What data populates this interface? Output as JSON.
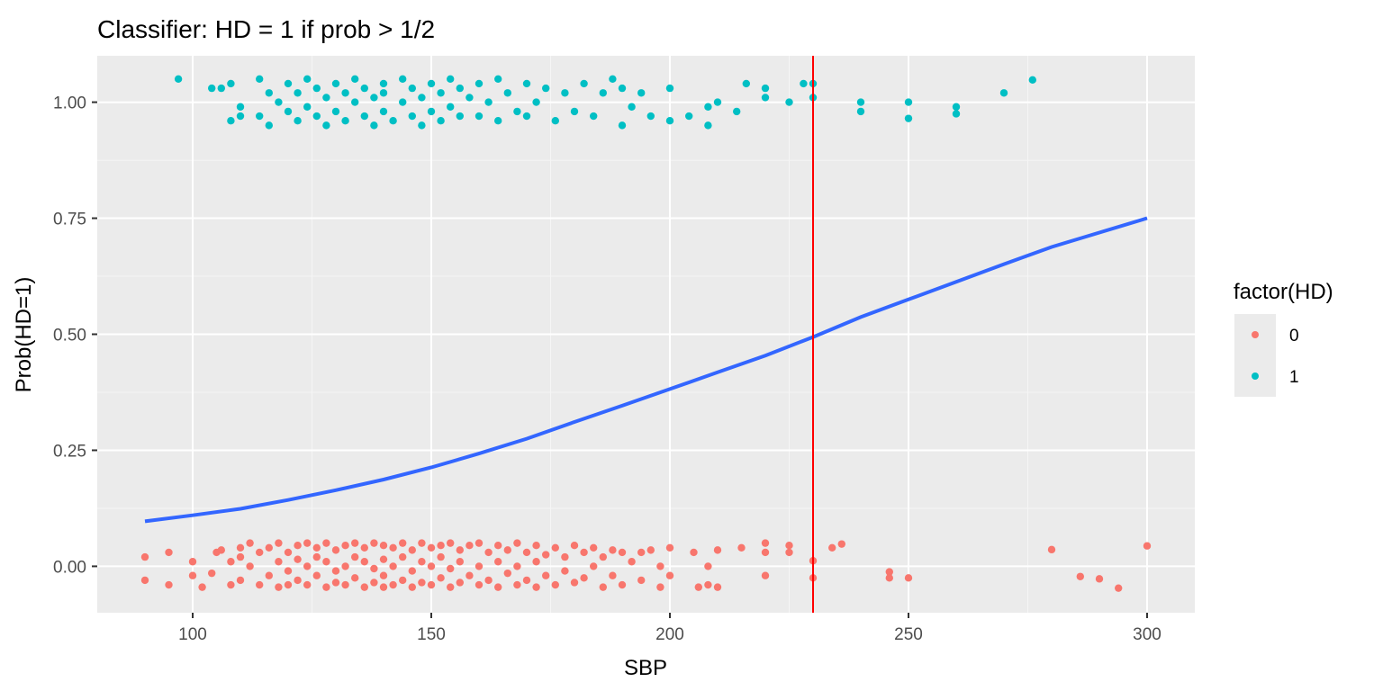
{
  "chart_data": {
    "type": "scatter",
    "title": "Classifier: HD = 1 if prob > 1/2",
    "xlabel": "SBP",
    "ylabel": "Prob(HD=1)",
    "xlim": [
      80,
      310
    ],
    "ylim": [
      -0.1,
      1.1
    ],
    "x_ticks": [
      100,
      150,
      200,
      250,
      300
    ],
    "x_tick_labels": [
      "100",
      "150",
      "200",
      "250",
      "300"
    ],
    "y_ticks": [
      0,
      0.25,
      0.5,
      0.75,
      1.0
    ],
    "y_tick_labels": [
      "0.00",
      "0.25",
      "0.50",
      "0.75",
      "1.00"
    ],
    "grid": true,
    "background": "#ebebeb",
    "legend": {
      "title": "factor(HD)",
      "placement": "right",
      "entries": [
        {
          "label": "0",
          "color": "#f8766d"
        },
        {
          "label": "1",
          "color": "#00bfc4"
        }
      ]
    },
    "threshold_line": {
      "x": 230,
      "color": "#ff0000"
    },
    "fitted_curve": {
      "color": "#3366ff",
      "x": [
        90,
        100,
        110,
        120,
        130,
        140,
        150,
        160,
        170,
        180,
        190,
        200,
        210,
        220,
        230,
        240,
        250,
        260,
        270,
        280,
        290,
        300
      ],
      "y": [
        0.097,
        0.11,
        0.124,
        0.143,
        0.164,
        0.187,
        0.213,
        0.243,
        0.275,
        0.311,
        0.346,
        0.382,
        0.418,
        0.454,
        0.494,
        0.537,
        0.575,
        0.613,
        0.651,
        0.688,
        0.719,
        0.75
      ]
    },
    "series": [
      {
        "name": "0",
        "color": "#f8766d",
        "points": [
          [
            90,
            0.02
          ],
          [
            90,
            -0.03
          ],
          [
            95,
            0.03
          ],
          [
            95,
            -0.04
          ],
          [
            100,
            0.01
          ],
          [
            100,
            -0.02
          ],
          [
            102,
            -0.045
          ],
          [
            104,
            -0.015
          ],
          [
            105,
            0.03
          ],
          [
            106,
            0.035
          ],
          [
            108,
            0.01
          ],
          [
            108,
            -0.04
          ],
          [
            110,
            0.04
          ],
          [
            110,
            0.02
          ],
          [
            110,
            -0.03
          ],
          [
            112,
            0.05
          ],
          [
            112,
            0.0
          ],
          [
            114,
            0.03
          ],
          [
            114,
            -0.04
          ],
          [
            116,
            0.04
          ],
          [
            116,
            -0.02
          ],
          [
            118,
            0.05
          ],
          [
            118,
            0.01
          ],
          [
            118,
            -0.045
          ],
          [
            120,
            0.03
          ],
          [
            120,
            -0.01
          ],
          [
            120,
            -0.04
          ],
          [
            122,
            0.045
          ],
          [
            122,
            0.015
          ],
          [
            122,
            -0.03
          ],
          [
            124,
            0.05
          ],
          [
            124,
            0.0
          ],
          [
            124,
            -0.04
          ],
          [
            126,
            0.04
          ],
          [
            126,
            0.02
          ],
          [
            126,
            -0.02
          ],
          [
            128,
            0.05
          ],
          [
            128,
            0.01
          ],
          [
            128,
            -0.045
          ],
          [
            130,
            0.035
          ],
          [
            130,
            -0.01
          ],
          [
            130,
            -0.035
          ],
          [
            132,
            0.045
          ],
          [
            132,
            0.0
          ],
          [
            132,
            -0.04
          ],
          [
            134,
            0.05
          ],
          [
            134,
            0.02
          ],
          [
            134,
            -0.025
          ],
          [
            136,
            0.04
          ],
          [
            136,
            0.01
          ],
          [
            136,
            -0.045
          ],
          [
            138,
            0.05
          ],
          [
            138,
            -0.005
          ],
          [
            138,
            -0.035
          ],
          [
            140,
            0.045
          ],
          [
            140,
            0.015
          ],
          [
            140,
            -0.02
          ],
          [
            140,
            -0.045
          ],
          [
            142,
            0.04
          ],
          [
            142,
            0.0
          ],
          [
            142,
            -0.04
          ],
          [
            144,
            0.05
          ],
          [
            144,
            0.02
          ],
          [
            144,
            -0.03
          ],
          [
            146,
            0.035
          ],
          [
            146,
            -0.01
          ],
          [
            146,
            -0.045
          ],
          [
            148,
            0.05
          ],
          [
            148,
            0.01
          ],
          [
            148,
            -0.035
          ],
          [
            150,
            0.04
          ],
          [
            150,
            0.0
          ],
          [
            150,
            -0.04
          ],
          [
            152,
            0.045
          ],
          [
            152,
            0.02
          ],
          [
            152,
            -0.025
          ],
          [
            154,
            0.05
          ],
          [
            154,
            -0.005
          ],
          [
            154,
            -0.045
          ],
          [
            156,
            0.035
          ],
          [
            156,
            0.01
          ],
          [
            156,
            -0.035
          ],
          [
            158,
            0.045
          ],
          [
            158,
            -0.02
          ],
          [
            160,
            0.05
          ],
          [
            160,
            0.0
          ],
          [
            160,
            -0.04
          ],
          [
            162,
            0.03
          ],
          [
            162,
            -0.03
          ],
          [
            164,
            0.045
          ],
          [
            164,
            0.01
          ],
          [
            164,
            -0.045
          ],
          [
            166,
            0.035
          ],
          [
            166,
            -0.015
          ],
          [
            168,
            0.05
          ],
          [
            168,
            0.0
          ],
          [
            168,
            -0.04
          ],
          [
            170,
            0.03
          ],
          [
            170,
            -0.03
          ],
          [
            172,
            0.045
          ],
          [
            172,
            0.01
          ],
          [
            172,
            -0.045
          ],
          [
            174,
            0.025
          ],
          [
            174,
            -0.02
          ],
          [
            176,
            0.04
          ],
          [
            176,
            -0.04
          ],
          [
            178,
            0.02
          ],
          [
            178,
            -0.01
          ],
          [
            180,
            0.045
          ],
          [
            180,
            -0.035
          ],
          [
            182,
            0.03
          ],
          [
            182,
            -0.025
          ],
          [
            184,
            0.04
          ],
          [
            184,
            0.0
          ],
          [
            186,
            0.02
          ],
          [
            186,
            -0.045
          ],
          [
            188,
            0.035
          ],
          [
            188,
            -0.02
          ],
          [
            190,
            0.03
          ],
          [
            190,
            -0.04
          ],
          [
            192,
            0.01
          ],
          [
            194,
            0.03
          ],
          [
            194,
            -0.03
          ],
          [
            196,
            0.035
          ],
          [
            198,
            0.0
          ],
          [
            198,
            -0.045
          ],
          [
            200,
            0.04
          ],
          [
            200,
            -0.02
          ],
          [
            205,
            0.03
          ],
          [
            206,
            -0.045
          ],
          [
            208,
            0.0
          ],
          [
            208,
            -0.04
          ],
          [
            210,
            0.035
          ],
          [
            210,
            -0.045
          ],
          [
            215,
            0.04
          ],
          [
            220,
            0.05
          ],
          [
            220,
            0.03
          ],
          [
            220,
            -0.02
          ],
          [
            225,
            0.045
          ],
          [
            225,
            0.03
          ],
          [
            230,
            0.012
          ],
          [
            230,
            -0.025
          ],
          [
            234,
            0.04
          ],
          [
            236,
            0.048
          ],
          [
            246,
            -0.012
          ],
          [
            246,
            -0.025
          ],
          [
            250,
            -0.025
          ],
          [
            280,
            0.036
          ],
          [
            286,
            -0.022
          ],
          [
            290,
            -0.027
          ],
          [
            294,
            -0.047
          ],
          [
            300,
            0.044
          ]
        ]
      },
      {
        "name": "1",
        "color": "#00bfc4",
        "points": [
          [
            97,
            1.05
          ],
          [
            104,
            1.03
          ],
          [
            106,
            1.03
          ],
          [
            108,
            0.96
          ],
          [
            108,
            1.04
          ],
          [
            110,
            0.97
          ],
          [
            110,
            0.99
          ],
          [
            114,
            1.05
          ],
          [
            114,
            0.97
          ],
          [
            116,
            0.95
          ],
          [
            116,
            1.02
          ],
          [
            118,
            1.0
          ],
          [
            120,
            1.04
          ],
          [
            120,
            0.98
          ],
          [
            122,
            1.02
          ],
          [
            122,
            0.96
          ],
          [
            124,
            1.05
          ],
          [
            124,
            0.99
          ],
          [
            126,
            1.03
          ],
          [
            126,
            0.97
          ],
          [
            128,
            1.01
          ],
          [
            128,
            0.95
          ],
          [
            130,
            1.04
          ],
          [
            130,
            0.98
          ],
          [
            132,
            1.02
          ],
          [
            132,
            0.96
          ],
          [
            134,
            1.05
          ],
          [
            134,
            1.0
          ],
          [
            136,
            0.97
          ],
          [
            136,
            1.03
          ],
          [
            138,
            1.01
          ],
          [
            138,
            0.95
          ],
          [
            140,
            1.04
          ],
          [
            140,
            0.98
          ],
          [
            140,
            1.02
          ],
          [
            142,
            0.96
          ],
          [
            144,
            1.05
          ],
          [
            144,
            1.0
          ],
          [
            146,
            0.97
          ],
          [
            146,
            1.03
          ],
          [
            148,
            1.01
          ],
          [
            148,
            0.95
          ],
          [
            150,
            1.04
          ],
          [
            150,
            0.98
          ],
          [
            152,
            1.02
          ],
          [
            152,
            0.96
          ],
          [
            154,
            1.05
          ],
          [
            154,
            0.99
          ],
          [
            156,
            1.03
          ],
          [
            156,
            0.97
          ],
          [
            158,
            1.01
          ],
          [
            160,
            1.04
          ],
          [
            160,
            0.97
          ],
          [
            162,
            1.0
          ],
          [
            164,
            1.05
          ],
          [
            164,
            0.96
          ],
          [
            166,
            1.02
          ],
          [
            168,
            0.98
          ],
          [
            170,
            1.04
          ],
          [
            170,
            0.97
          ],
          [
            172,
            1.0
          ],
          [
            174,
            1.03
          ],
          [
            176,
            0.96
          ],
          [
            178,
            1.02
          ],
          [
            180,
            0.98
          ],
          [
            182,
            1.04
          ],
          [
            184,
            0.97
          ],
          [
            186,
            1.02
          ],
          [
            188,
            1.05
          ],
          [
            190,
            0.95
          ],
          [
            190,
            1.03
          ],
          [
            192,
            0.99
          ],
          [
            194,
            1.02
          ],
          [
            196,
            0.97
          ],
          [
            200,
            0.96
          ],
          [
            200,
            1.03
          ],
          [
            204,
            0.97
          ],
          [
            208,
            0.95
          ],
          [
            208,
            0.99
          ],
          [
            210,
            1.0
          ],
          [
            214,
            0.98
          ],
          [
            216,
            1.04
          ],
          [
            220,
            1.03
          ],
          [
            220,
            1.01
          ],
          [
            225,
            1.0
          ],
          [
            228,
            1.04
          ],
          [
            230,
            1.04
          ],
          [
            230,
            1.01
          ],
          [
            240,
            0.98
          ],
          [
            240,
            1.0
          ],
          [
            250,
            1.0
          ],
          [
            250,
            0.965
          ],
          [
            260,
            0.99
          ],
          [
            260,
            0.975
          ],
          [
            270,
            1.02
          ],
          [
            276,
            1.048
          ]
        ]
      }
    ]
  }
}
